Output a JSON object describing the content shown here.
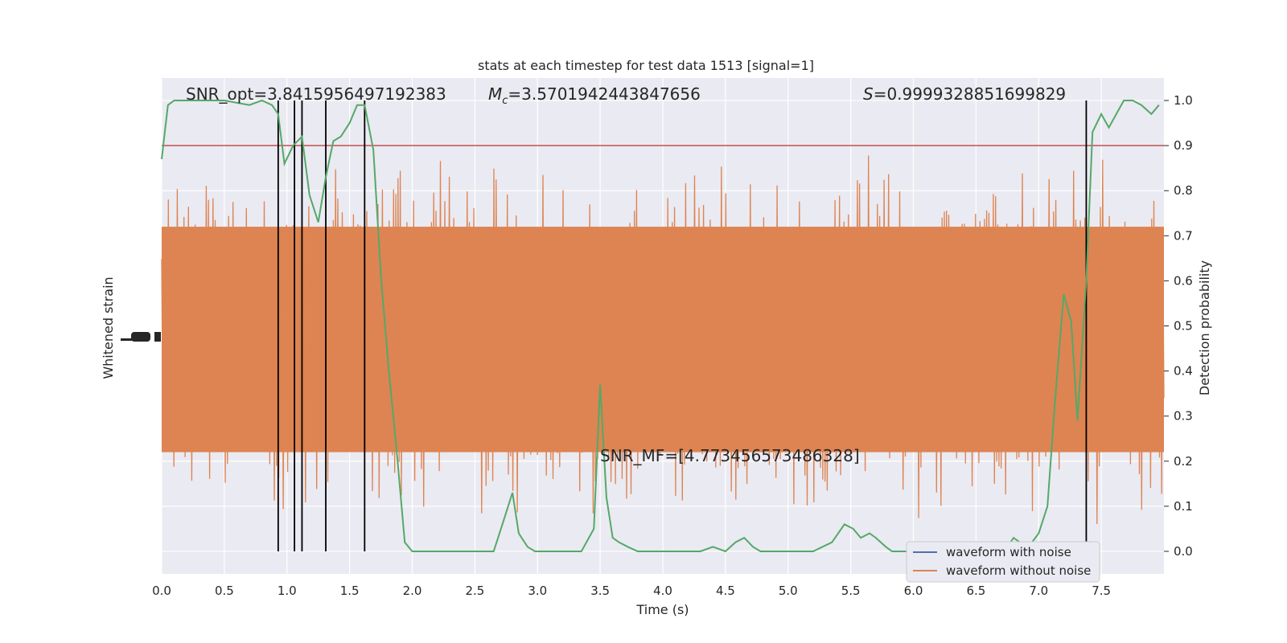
{
  "chart_data": {
    "type": "line",
    "title": "stats at each timestep for test data 1513 [signal=1]",
    "xlabel": "Time (s)",
    "ylabel_left": "Whitened strain",
    "ylabel_right": "Detection probability",
    "xlim": [
      0,
      8.0
    ],
    "ylim_right": [
      -0.05,
      1.05
    ],
    "x_ticks": [
      "0.0",
      "0.5",
      "1.0",
      "1.5",
      "2.0",
      "2.5",
      "3.0",
      "3.5",
      "4.0",
      "4.5",
      "5.0",
      "5.5",
      "6.0",
      "6.5",
      "7.0",
      "7.5"
    ],
    "y_right_ticks": [
      "0.0",
      "0.1",
      "0.2",
      "0.3",
      "0.4",
      "0.5",
      "0.6",
      "0.7",
      "0.8",
      "0.9",
      "1.0"
    ],
    "grid": true,
    "legend": {
      "position": "lower-right",
      "entries": [
        {
          "label": "waveform with noise",
          "color": "#4c72b0"
        },
        {
          "label": "waveform without noise",
          "color": "#dd8452"
        }
      ]
    },
    "annotations": {
      "snr_opt": "SNR_opt=3.8415956497192383",
      "mc_symbol": "M",
      "mc_sub": "c",
      "mc_value": "=3.5701942443847656",
      "s_symbol": "S",
      "s_value": "=0.9999328851699829",
      "snr_mf": "SNR_MF=[4.773456573486328]"
    },
    "threshold": {
      "value": 0.9,
      "color": "#c44e52"
    },
    "vertical_lines_x": [
      0.93,
      1.06,
      1.12,
      1.31,
      1.62,
      7.38
    ],
    "detection_probability": {
      "name": "detection probability",
      "color": "#55a868",
      "x": [
        0.0,
        0.05,
        0.1,
        0.2,
        0.3,
        0.5,
        0.7,
        0.8,
        0.88,
        0.93,
        0.98,
        1.05,
        1.12,
        1.18,
        1.25,
        1.31,
        1.37,
        1.43,
        1.5,
        1.56,
        1.62,
        1.69,
        1.75,
        1.81,
        1.88,
        1.94,
        2.0,
        2.06,
        2.2,
        2.4,
        2.5,
        2.65,
        2.72,
        2.8,
        2.85,
        2.92,
        2.98,
        3.05,
        3.2,
        3.35,
        3.45,
        3.5,
        3.55,
        3.6,
        3.65,
        3.72,
        3.8,
        3.86,
        3.93,
        4.1,
        4.3,
        4.4,
        4.5,
        4.58,
        4.65,
        4.72,
        4.78,
        4.85,
        4.92,
        5.0,
        5.2,
        5.35,
        5.45,
        5.52,
        5.58,
        5.65,
        5.7,
        5.78,
        5.83,
        5.9,
        5.95,
        6.0,
        6.2,
        6.5,
        6.75,
        6.8,
        6.85,
        6.92,
        7.0,
        7.07,
        7.13,
        7.2,
        7.26,
        7.31,
        7.38,
        7.43,
        7.5,
        7.56,
        7.62,
        7.68,
        7.75,
        7.82,
        7.9,
        7.96
      ],
      "y": [
        0.87,
        0.99,
        1.0,
        1.0,
        1.0,
        1.0,
        0.99,
        1.0,
        0.99,
        0.97,
        0.86,
        0.9,
        0.92,
        0.79,
        0.73,
        0.83,
        0.91,
        0.92,
        0.95,
        0.99,
        0.99,
        0.89,
        0.61,
        0.41,
        0.21,
        0.02,
        0.0,
        0.0,
        0.0,
        0.0,
        0.0,
        0.0,
        0.06,
        0.13,
        0.04,
        0.01,
        0.0,
        0.0,
        0.0,
        0.0,
        0.05,
        0.37,
        0.12,
        0.03,
        0.02,
        0.01,
        0.0,
        0.0,
        0.0,
        0.0,
        0.0,
        0.01,
        0.0,
        0.02,
        0.03,
        0.01,
        0.0,
        0.0,
        0.0,
        0.0,
        0.0,
        0.02,
        0.06,
        0.05,
        0.03,
        0.04,
        0.03,
        0.01,
        0.0,
        0.0,
        0.0,
        0.0,
        0.0,
        0.0,
        0.01,
        0.03,
        0.02,
        0.01,
        0.04,
        0.1,
        0.33,
        0.57,
        0.51,
        0.29,
        0.6,
        0.93,
        0.97,
        0.94,
        0.97,
        1.0,
        1.0,
        0.99,
        0.97,
        0.99
      ]
    },
    "strain_without_noise": {
      "name": "waveform without noise",
      "color": "#dd8452",
      "n_samples": 900
    }
  }
}
